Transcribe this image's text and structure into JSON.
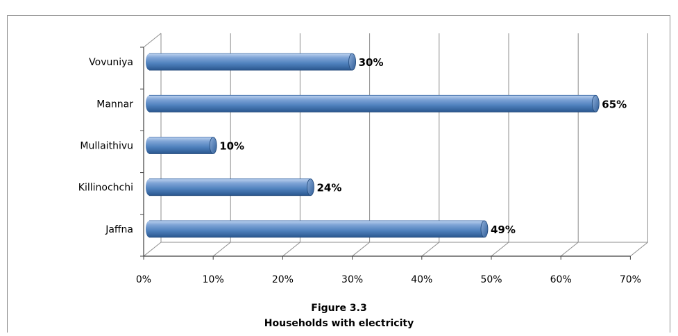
{
  "figure_number": "Figure 3.3",
  "chart_title": "Households with electricity",
  "chart_data": {
    "type": "bar",
    "orientation": "horizontal",
    "categories": [
      "Jaffna",
      "Killinochchi",
      "Mullaithivu",
      "Mannar",
      "Vovuniya"
    ],
    "values": [
      49,
      24,
      10,
      65,
      30
    ],
    "value_labels": [
      "49%",
      "24%",
      "10%",
      "65%",
      "30%"
    ],
    "x_ticks": [
      "0%",
      "10%",
      "20%",
      "30%",
      "40%",
      "50%",
      "60%",
      "70%"
    ],
    "xlim": [
      0,
      70
    ],
    "grid": true,
    "style": "3d-cylinder",
    "colors": {
      "bar_light": "#a9c4e8",
      "bar_mid": "#4f81bd",
      "bar_dark": "#254f8a",
      "grid": "#8c8c8c",
      "axis": "#404040"
    }
  }
}
